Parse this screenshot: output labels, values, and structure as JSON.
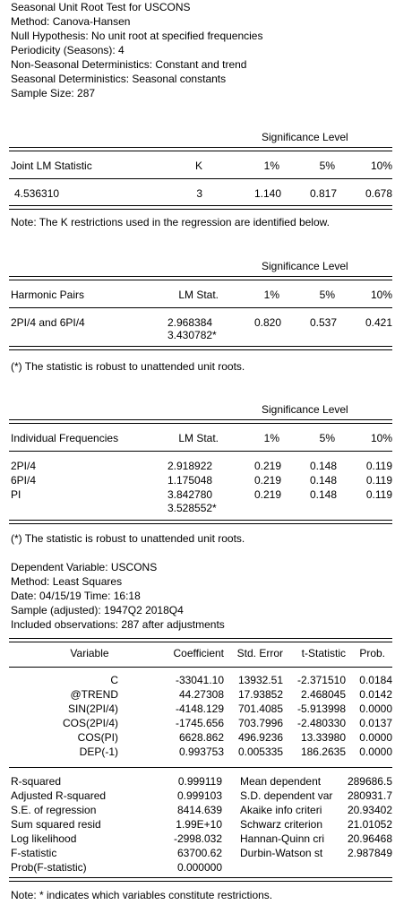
{
  "header": [
    "Seasonal Unit Root Test for USCONS",
    "Method: Canova-Hansen",
    "Null Hypothesis: No unit root at specified frequencies",
    "Periodicity (Seasons): 4",
    "Non-Seasonal Deterministics: Constant and trend",
    "Seasonal Deterministics: Seasonal constants",
    "Sample Size: 287"
  ],
  "joint": {
    "sig_level_label": "Significance Level",
    "col_stat": "Joint LM Statistic",
    "col_k": "K",
    "col_1": "1%",
    "col_5": "5%",
    "col_10": "10%",
    "stat": "4.536310",
    "k": "3",
    "v1": "1.140",
    "v5": "0.817",
    "v10": "0.678",
    "note": "Note: The K restrictions used in the regression are identified below."
  },
  "harmonic": {
    "sig_level_label": "Significance Level",
    "col_name": "Harmonic Pairs",
    "col_lm": "LM Stat.",
    "col_1": "1%",
    "col_5": "5%",
    "col_10": "10%",
    "rows": [
      {
        "name": "2PI/4 and 6PI/4",
        "lm": "2.968384",
        "v1": "0.820",
        "v5": "0.537",
        "v10": "0.421"
      },
      {
        "name": "",
        "lm": "3.430782*",
        "v1": "",
        "v5": "",
        "v10": ""
      }
    ],
    "note": "(*) The statistic is robust to unattended unit roots."
  },
  "individual": {
    "sig_level_label": "Significance Level",
    "col_name": "Individual Frequencies",
    "col_lm": "LM Stat.",
    "col_1": "1%",
    "col_5": "5%",
    "col_10": "10%",
    "rows": [
      {
        "name": "2PI/4",
        "lm": "2.918922",
        "v1": "0.219",
        "v5": "0.148",
        "v10": "0.119"
      },
      {
        "name": "6PI/4",
        "lm": "1.175048",
        "v1": "0.219",
        "v5": "0.148",
        "v10": "0.119"
      },
      {
        "name": "PI",
        "lm": "3.842780",
        "v1": "0.219",
        "v5": "0.148",
        "v10": "0.119"
      },
      {
        "name": "",
        "lm": "3.528552*",
        "v1": "",
        "v5": "",
        "v10": ""
      }
    ],
    "note": "(*) The statistic is robust to unattended unit roots."
  },
  "regression": {
    "info": [
      "Dependent Variable: USCONS",
      "Method: Least Squares",
      "Date: 04/15/19   Time: 16:18",
      "Sample (adjusted): 1947Q2 2018Q4",
      "Included observations: 287 after adjustments"
    ],
    "col_var": "Variable",
    "col_coef": "Coefficient",
    "col_se": "Std. Error",
    "col_t": "t-Statistic",
    "col_prob": "Prob.",
    "rows": [
      {
        "var": "C",
        "coef": "-33041.10",
        "se": "13932.51",
        "t": "-2.371510",
        "prob": "0.0184"
      },
      {
        "var": "@TREND",
        "coef": "44.27308",
        "se": "17.93852",
        "t": "2.468045",
        "prob": "0.0142"
      },
      {
        "var": "SIN(2PI/4)",
        "coef": "-4148.129",
        "se": "701.4085",
        "t": "-5.913998",
        "prob": "0.0000"
      },
      {
        "var": "COS(2PI/4)",
        "coef": "-1745.656",
        "se": "703.7996",
        "t": "-2.480330",
        "prob": "0.0137"
      },
      {
        "var": "COS(PI)",
        "coef": "6628.862",
        "se": "496.9236",
        "t": "13.33980",
        "prob": "0.0000"
      },
      {
        "var": "DEP(-1)",
        "coef": "0.993753",
        "se": "0.005335",
        "t": "186.2635",
        "prob": "0.0000"
      }
    ],
    "stats_left": [
      {
        "label": "R-squared",
        "value": "0.999119"
      },
      {
        "label": "Adjusted R-squared",
        "value": "0.999103"
      },
      {
        "label": "S.E. of regression",
        "value": "8414.639"
      },
      {
        "label": "Sum squared resid",
        "value": "1.99E+10"
      },
      {
        "label": "Log likelihood",
        "value": "-2998.032"
      },
      {
        "label": "F-statistic",
        "value": "63700.62"
      },
      {
        "label": "Prob(F-statistic)",
        "value": "0.000000"
      }
    ],
    "stats_right": [
      {
        "label": "Mean dependent",
        "value": "289686.5"
      },
      {
        "label": "S.D. dependent var",
        "value": "280931.7"
      },
      {
        "label": "Akaike info criteri",
        "value": "20.93402"
      },
      {
        "label": "Schwarz criterion",
        "value": "21.01052"
      },
      {
        "label": "Hannan-Quinn cri",
        "value": "20.96468"
      },
      {
        "label": "Durbin-Watson st",
        "value": "2.987849"
      }
    ],
    "note": "Note: * indicates which variables constitute restrictions."
  }
}
